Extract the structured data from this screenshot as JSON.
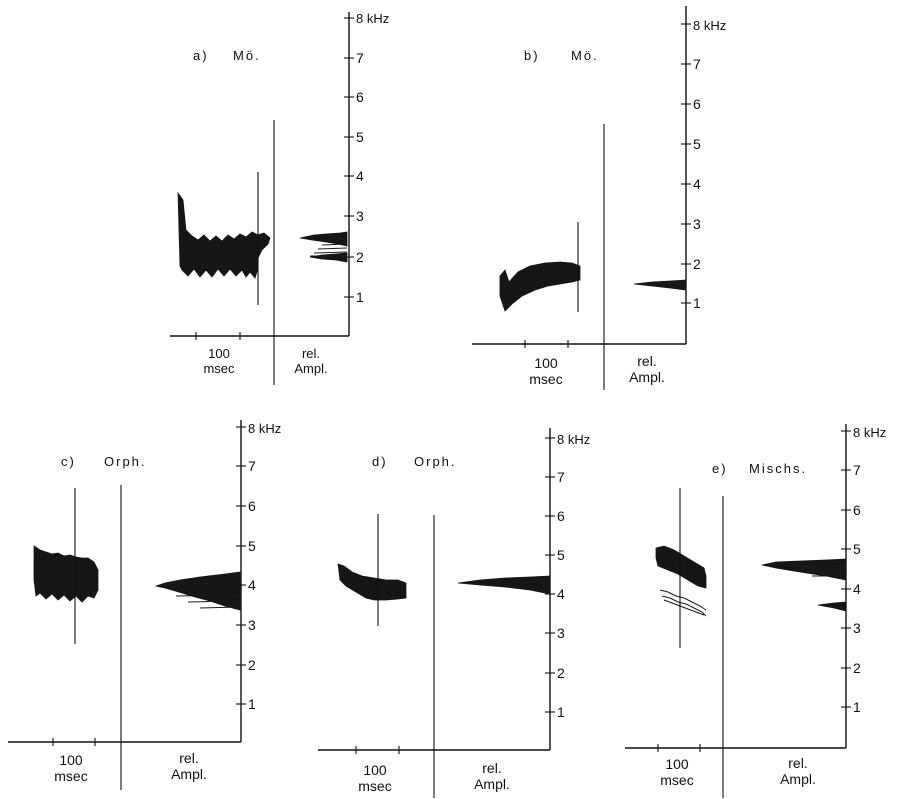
{
  "panels": [
    {
      "label": "a)",
      "speaker": "Mö.",
      "khz_ticks": [
        "1",
        "2",
        "3",
        "4",
        "5",
        "6",
        "7"
      ],
      "khz_top": "8 kHz",
      "time_label": [
        "100",
        "msec"
      ],
      "ampl_label": [
        "rel.",
        "Ampl."
      ]
    },
    {
      "label": "b)",
      "speaker": "Mö.",
      "khz_ticks": [
        "1",
        "2",
        "3",
        "4",
        "5",
        "6",
        "7"
      ],
      "khz_top": "8 kHz",
      "time_label": [
        "100",
        "msec"
      ],
      "ampl_label": [
        "rel.",
        "Ampl."
      ]
    },
    {
      "label": "c)",
      "speaker": "Orph.",
      "khz_ticks": [
        "1",
        "2",
        "3",
        "4",
        "5",
        "6",
        "7"
      ],
      "khz_top": "8 kHz",
      "time_label": [
        "100",
        "msec"
      ],
      "ampl_label": [
        "rel.",
        "Ampl."
      ]
    },
    {
      "label": "d)",
      "speaker": "Orph.",
      "khz_ticks": [
        "1",
        "2",
        "3",
        "4",
        "5",
        "6",
        "7"
      ],
      "khz_top": "8 kHz",
      "time_label": [
        "100",
        "msec"
      ],
      "ampl_label": [
        "rel.",
        "Ampl."
      ]
    },
    {
      "label": "e)",
      "speaker": "Mischs.",
      "khz_ticks": [
        "1",
        "2",
        "3",
        "4",
        "5",
        "6",
        "7"
      ],
      "khz_top": "8 kHz",
      "time_label": [
        "100",
        "msec"
      ],
      "ampl_label": [
        "rel.",
        "Ampl."
      ]
    }
  ]
}
